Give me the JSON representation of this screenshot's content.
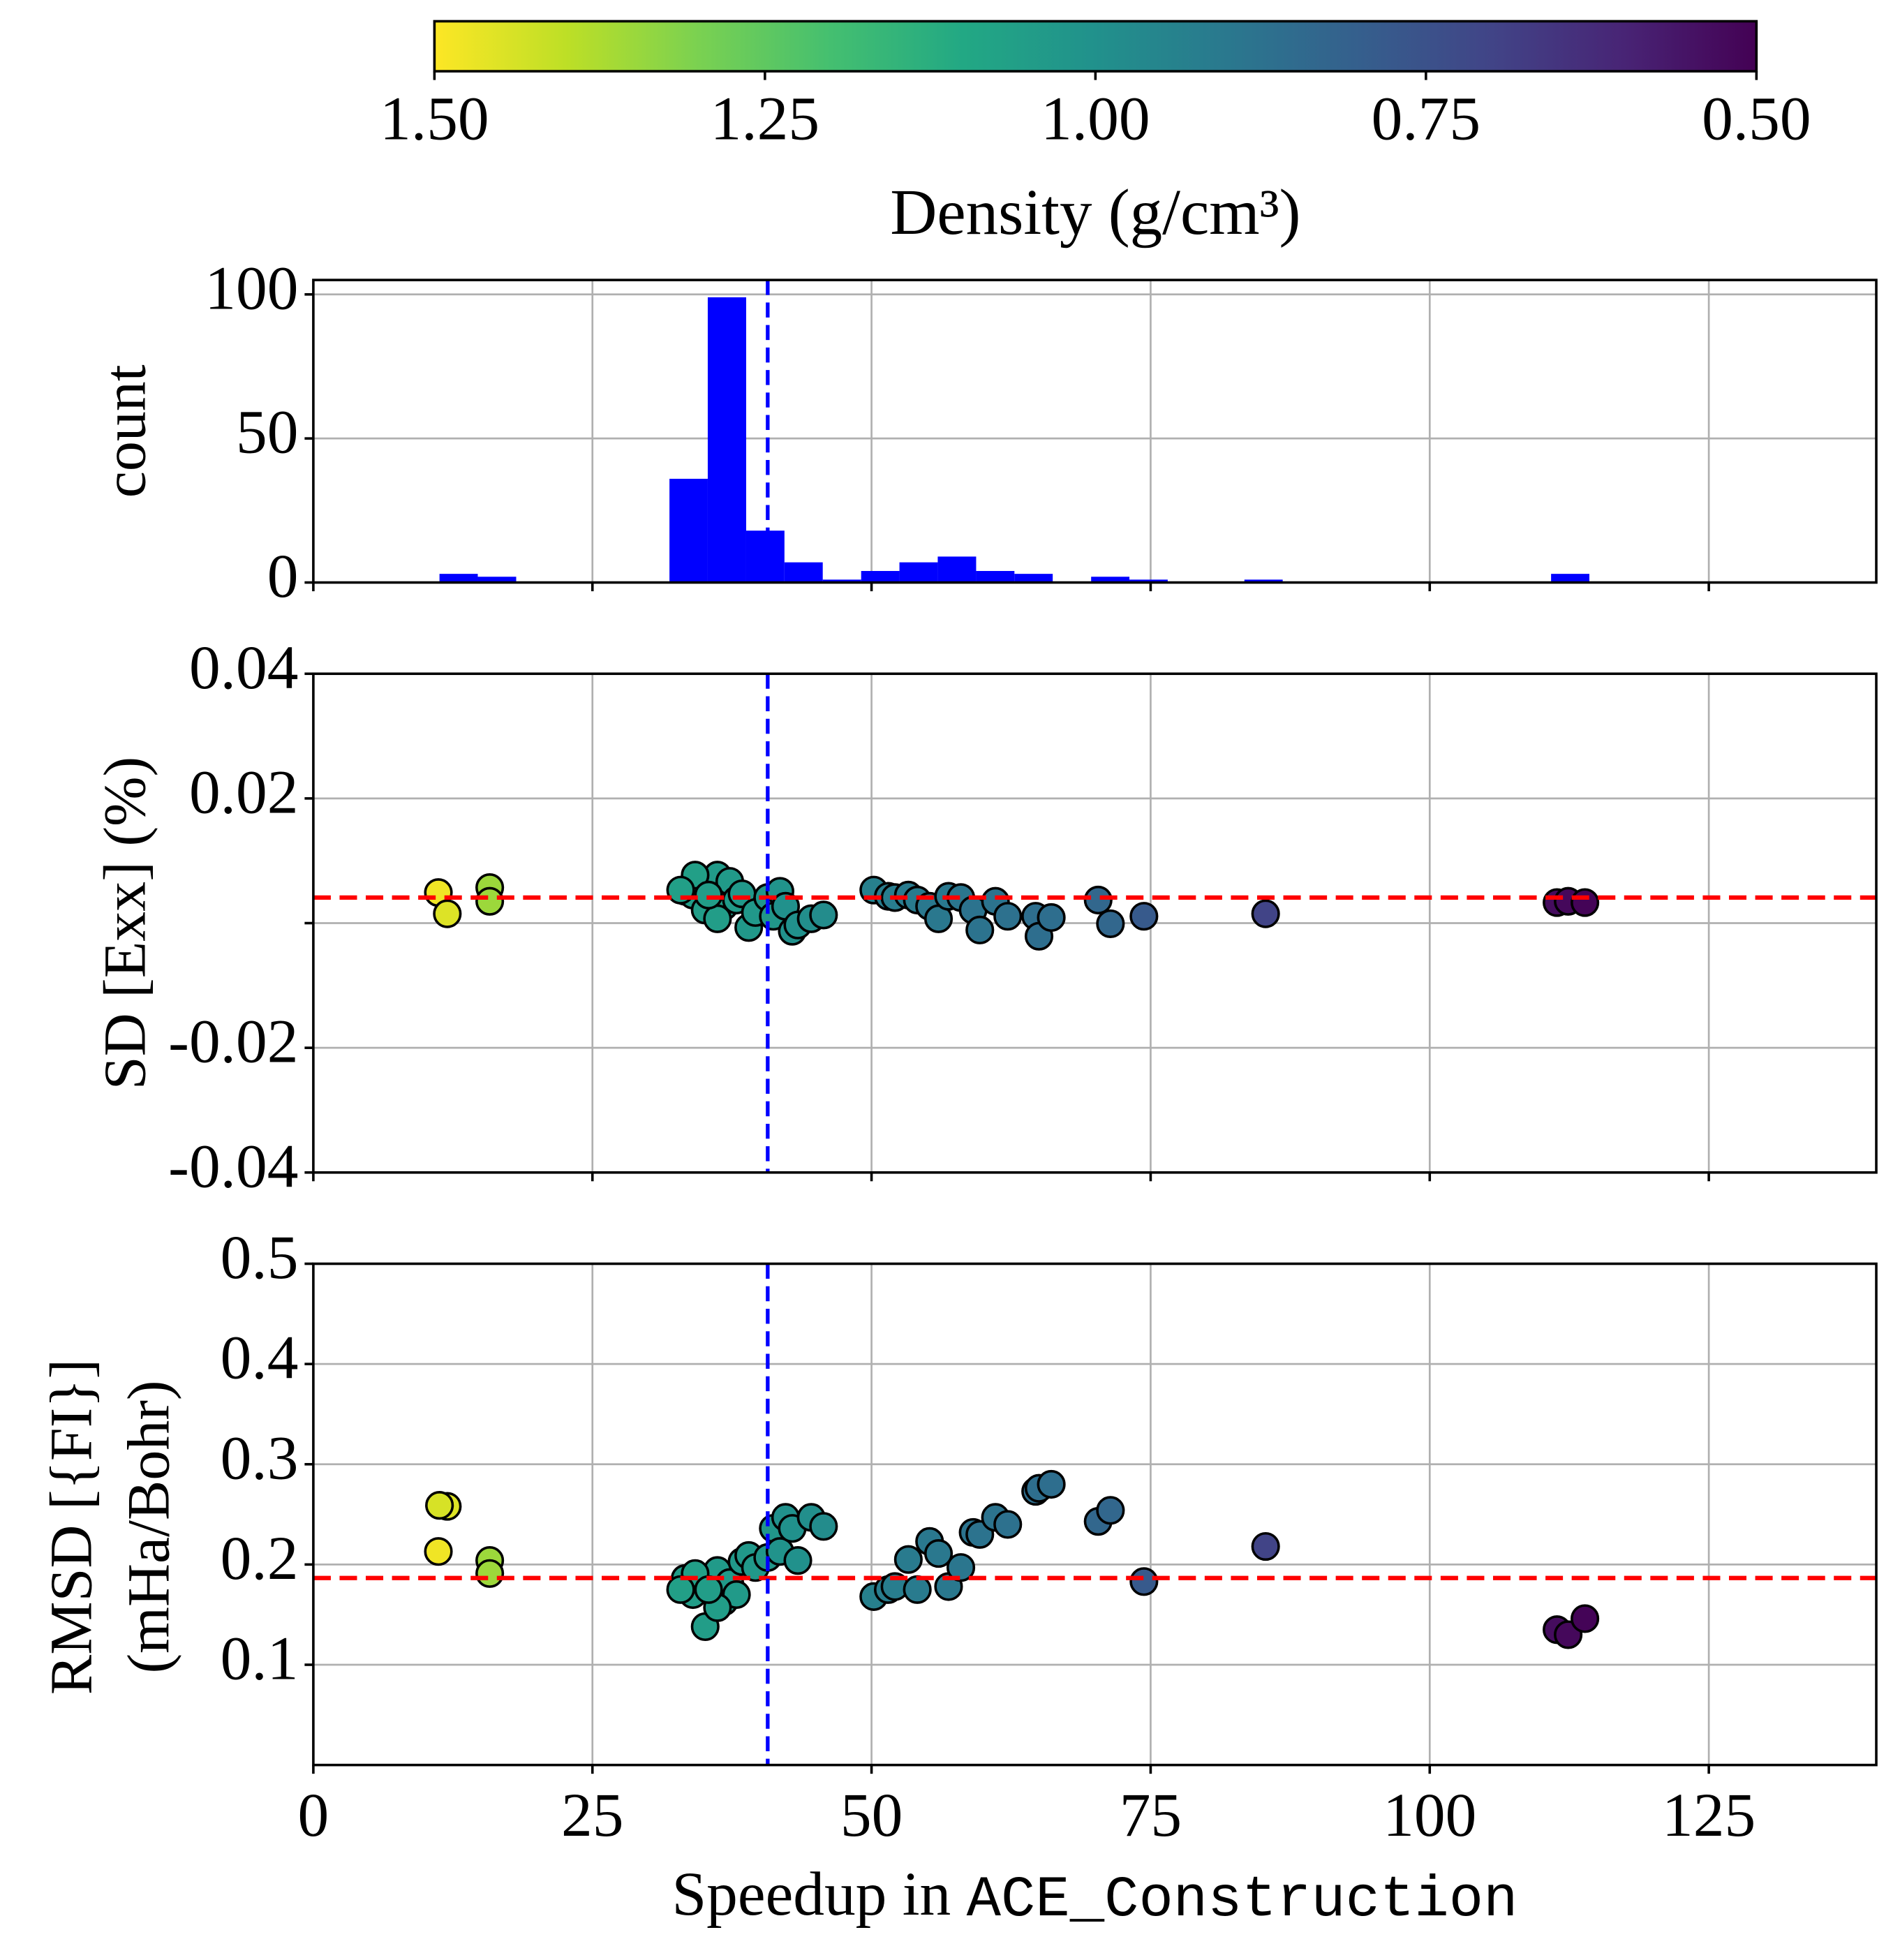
{
  "chart_data": [
    {
      "type": "colorbar",
      "label": "Density (g/cm³)",
      "clim": [
        1.5,
        0.5
      ],
      "colors": [
        "#fde725",
        "#bddf26",
        "#7ad151",
        "#44bf70",
        "#22a884",
        "#21918c",
        "#2a788e",
        "#355f8d",
        "#414487",
        "#482475",
        "#440154"
      ],
      "ticks": [
        {
          "value": 1.5,
          "label": "1.50"
        },
        1.25,
        {
          "value": 1.0,
          "label": "1.00"
        },
        0.75,
        {
          "value": 0.5,
          "label": "0.50"
        }
      ]
    },
    {
      "type": "histogram",
      "ylabel": "count",
      "color": "#0000ff",
      "bins": [
        11.3,
        14.73,
        18.17,
        21.6,
        25.03,
        28.47,
        31.9,
        35.33,
        38.77,
        42.2,
        45.63,
        49.07,
        52.5,
        55.93,
        59.37,
        62.8,
        66.23,
        69.67,
        73.1,
        76.53,
        79.97,
        83.4,
        86.83,
        90.27,
        93.7,
        97.13,
        100.57,
        104,
        107.43,
        110.87,
        114.3
      ],
      "values": [
        3,
        2,
        0,
        0,
        0,
        0,
        36,
        99,
        18,
        7,
        1,
        4,
        7,
        9,
        4,
        3,
        0,
        2,
        1,
        0,
        0,
        1,
        0,
        0,
        0,
        0,
        0,
        0,
        0,
        3
      ],
      "xlim": [
        0,
        140
      ],
      "xticks": [
        0,
        25,
        50,
        75,
        100,
        125
      ],
      "show_xtick_labels": false,
      "ylim": [
        0,
        105
      ],
      "yticks": [
        0,
        50,
        100
      ],
      "grid": true,
      "vline": 40.7,
      "vline_color": "#0000ff"
    },
    {
      "type": "scatter",
      "ylabel": "SD [Exx] (%)",
      "x": [
        11.2,
        12.0,
        15.8,
        15.8,
        33.3,
        34.0,
        35.1,
        35.6,
        36.2,
        36.8,
        37.3,
        37.9,
        38.4,
        39.0,
        39.6,
        40.7,
        41.2,
        41.8,
        42.3,
        42.9,
        43.4,
        44.6,
        45.7,
        34.2,
        32.9,
        36.2,
        35.4,
        50.2,
        51.5,
        52.1,
        53.3,
        54.1,
        55.2,
        56.0,
        56.9,
        58.0,
        59.1,
        59.7,
        61.1,
        62.2,
        64.7,
        65.0,
        66.1,
        70.3,
        71.4,
        74.4,
        85.3,
        111.4,
        112.4,
        113.9
      ],
      "values": [
        0.0049,
        0.0015,
        0.0057,
        0.0035,
        0.0051,
        0.0045,
        0.0021,
        0.0053,
        0.0077,
        0.0027,
        0.0067,
        0.0037,
        0.0047,
        -0.0007,
        0.0017,
        0.0041,
        0.0011,
        0.0051,
        0.0027,
        -0.0013,
        -0.0003,
        0.0007,
        0.0013,
        0.0077,
        0.0053,
        0.0007,
        0.0045,
        0.0053,
        0.0043,
        0.0041,
        0.0045,
        0.0037,
        0.0027,
        0.0007,
        0.0043,
        0.0041,
        0.0021,
        -0.0011,
        0.0035,
        0.0011,
        0.0011,
        -0.0021,
        0.0009,
        0.0037,
        -0.0001,
        0.0011,
        0.0015,
        0.0033,
        0.0035,
        0.0033
      ],
      "density": [
        1.48,
        1.45,
        1.35,
        1.35,
        1.05,
        1.05,
        1.05,
        1.05,
        1.04,
        1.05,
        1.04,
        1.04,
        1.03,
        1.03,
        1.03,
        1.02,
        1.02,
        1.01,
        1.0,
        1.0,
        1.0,
        0.99,
        0.98,
        1.06,
        1.06,
        1.05,
        1.05,
        0.93,
        0.92,
        0.92,
        0.91,
        0.91,
        0.9,
        0.9,
        0.9,
        0.89,
        0.88,
        0.88,
        0.88,
        0.87,
        0.86,
        0.86,
        0.86,
        0.83,
        0.83,
        0.78,
        0.7,
        0.53,
        0.52,
        0.51
      ],
      "xlim": [
        0,
        140
      ],
      "xticks": [
        0,
        25,
        50,
        75,
        100,
        125
      ],
      "show_xtick_labels": false,
      "ylim": [
        -0.04,
        0.04
      ],
      "yticks": [
        -0.04,
        -0.02,
        {
          "value": 0,
          "label": null
        },
        0.02,
        0.04
      ],
      "grid": true,
      "vline": 40.7,
      "vline_color": "#0000ff",
      "hline": 0.0041,
      "hline_color": "#ff0000"
    },
    {
      "type": "scatter",
      "ylabel": [
        "RMSD [{FI}]",
        "(mHa/Bohr)"
      ],
      "xlabel": "Speedup in",
      "xlabel_code": "ACE_Construction",
      "x": [
        11.2,
        12.0,
        11.3,
        15.8,
        15.8,
        33.3,
        34.0,
        35.1,
        35.6,
        36.2,
        36.8,
        37.3,
        37.9,
        38.4,
        39.0,
        39.6,
        40.7,
        41.2,
        41.8,
        42.3,
        42.9,
        43.4,
        44.6,
        45.7,
        34.2,
        32.9,
        36.2,
        35.4,
        50.2,
        51.5,
        52.1,
        53.3,
        54.1,
        55.2,
        56.0,
        56.9,
        58.0,
        59.1,
        59.7,
        61.1,
        62.2,
        64.7,
        65.0,
        66.1,
        70.3,
        71.4,
        74.4,
        85.3,
        111.4,
        112.4,
        113.9
      ],
      "values": [
        0.213,
        0.258,
        0.259,
        0.204,
        0.191,
        0.186,
        0.17,
        0.138,
        0.175,
        0.194,
        0.163,
        0.182,
        0.17,
        0.203,
        0.209,
        0.197,
        0.207,
        0.236,
        0.213,
        0.247,
        0.236,
        0.204,
        0.247,
        0.238,
        0.191,
        0.175,
        0.157,
        0.175,
        0.168,
        0.175,
        0.178,
        0.205,
        0.175,
        0.223,
        0.211,
        0.178,
        0.197,
        0.232,
        0.23,
        0.247,
        0.24,
        0.273,
        0.276,
        0.28,
        0.243,
        0.254,
        0.183,
        0.218,
        0.135,
        0.13,
        0.146
      ],
      "density": [
        1.48,
        1.45,
        1.44,
        1.35,
        1.35,
        1.05,
        1.05,
        1.05,
        1.05,
        1.04,
        1.05,
        1.04,
        1.04,
        1.03,
        1.03,
        1.03,
        1.02,
        1.02,
        1.01,
        1.0,
        1.0,
        1.0,
        0.99,
        0.98,
        1.06,
        1.06,
        1.05,
        1.05,
        0.93,
        0.92,
        0.92,
        0.91,
        0.91,
        0.9,
        0.9,
        0.9,
        0.89,
        0.88,
        0.88,
        0.88,
        0.87,
        0.86,
        0.86,
        0.86,
        0.83,
        0.83,
        0.78,
        0.7,
        0.53,
        0.52,
        0.51
      ],
      "xlim": [
        0,
        140
      ],
      "xticks": [
        0,
        25,
        50,
        75,
        100,
        125
      ],
      "show_xtick_labels": true,
      "ylim": [
        0,
        0.5
      ],
      "yticks": [
        0.1,
        0.2,
        0.3,
        0.4,
        0.5
      ],
      "grid": true,
      "vline": 40.7,
      "vline_color": "#0000ff",
      "hline": 0.1865,
      "hline_color": "#ff0000"
    }
  ]
}
